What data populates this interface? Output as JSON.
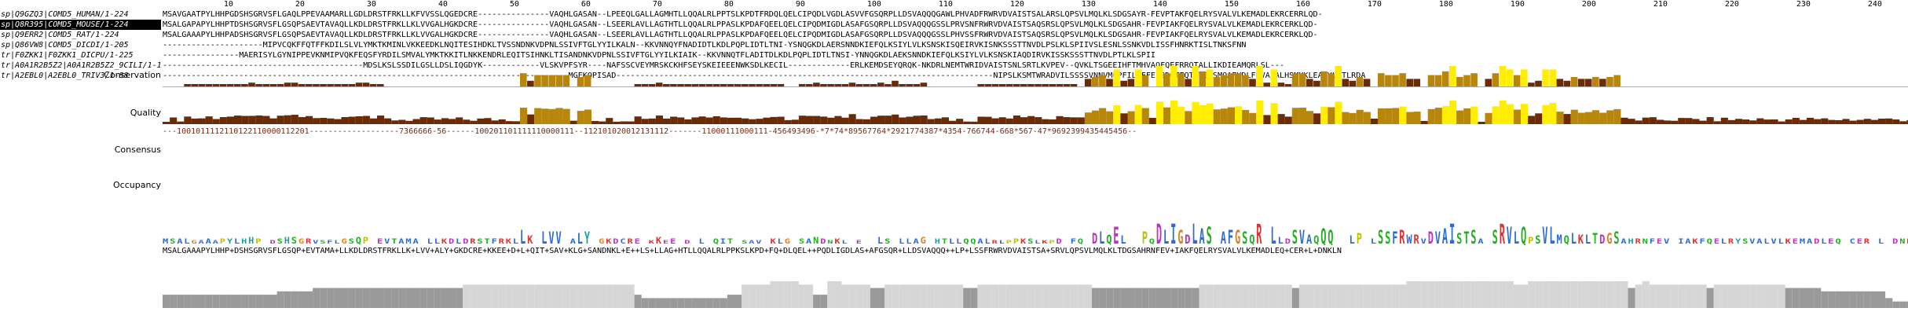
{
  "ruler": {
    "ticks": [
      "10",
      "20",
      "30",
      "40",
      "50",
      "60",
      "70",
      "80",
      "90",
      "100",
      "110",
      "120",
      "130",
      "140",
      "150",
      "160",
      "170",
      "180",
      "190",
      "200",
      "210",
      "220",
      "230",
      "240"
    ]
  },
  "sequences": [
    {
      "name": "sp|Q9GZQ3|COMD5_HUMAN/1-224",
      "selected": false,
      "seq": "MSAVGAATPYLHHPGDSHSGRVSFLGAQLPPEVAAMARLLGDLDRSTFRKLLKFVVSSLQGEDCRE---------------VAQHLGASAN--LPEEQLGALLAGMHTLLQQALRLPPTSLKPDTFRDQLQELCIPQDLVGDLASVVFGSQRPLLDSVAQQQGAWLPHVADFRWRVDVAISTSALARSLQPSVLMQLKLSDGSAYR-FEVPTAKFQELRYSVALVLKEMADLEKRCERRLQD-"
    },
    {
      "name": "sp|Q8R395|COMD5_MOUSE/1-224",
      "selected": true,
      "seq": "MSALGAPAPYLHHPTDSHSGRVSFLGSQPSAEVTAVAQLLKDLDRSTFRKLLKLVVGALHGKDCRE---------------VAQHLGASAN--LSEERLAVLLAGTHTLLQQALRLPPASLKPDAFQEELQELCIPQDMIGDLASAFGSQRPLLDSVAQQQGSSLPRVSNFRWRVDVAISTSAQSRSLQPSVLMQLKLSDGSAHR-FEVPIAKFQELRYSVALVLKEMADLEKRCERKLQD-"
    },
    {
      "name": "sp|Q9ERR2|COMD5_RAT/1-224",
      "selected": false,
      "seq": "MSALGAAAPYLHHPADSHSGRVSFLGSQPSAEVTAVAQLLKDLDRSTFRKLLKLVVGALHGKDCRE---------------VAQHLGASAN--LSEERLAVLLAGTHTLLQQALRLPPASLKPDAFQEELQELCIPQDMIGDLASAFGSQRPLLDSVAQQQGSSLPHVSSFRWRVDVAISTSAQSRSLQPSVLMQLKLSDGSAHR-FEVPIAKFQELRYSVALVLKEMADLEKRCERKLQD-"
    },
    {
      "name": "sp|Q86VW8|COMD5_DICDI/1-205",
      "selected": false,
      "seq": "---------------------MIPVCQKFFQTFFKDILSLVLYMKTKMINLVKKEEDKLNQITESIHDKLTVSSNDNKVDPNLSSIVFTGLYYILKALN--KKVNNQYFNADIDTLKDLPQPLIDTLTNI-YSNQGKDLAERSNNDKIEFQLKSIYLVLKSNSKISQEIRVKISNKSSSTTNVDLPSLKLSPIIVSLESNLSSNKVDLISSFHNRKTISLTNKSFNN"
    },
    {
      "name": "tr|F0ZKK1|F0ZKK1_DICPU/1-225",
      "selected": false,
      "seq": "----------------MAERISYLGYNIPPEVKNMIPVQKFEQSFYRDILSMVALYMKTKKITLNKKENDRLEQITSIHNKLTISANDNKVDPNLSSIVFTGLYYILKIAIK--KKVNNQTFLADITDLKDLPQPLIDTLTNSI-YNNQGKDLAEKSNNDKIEFQLKSIYLVLKSNSKIAQDIRVKISSKSSSTTNVDLPTLKLSPII"
    },
    {
      "name": "tr|A0A1R2B5Z2|A0A1R2B5Z2_9CILI/1-167",
      "selected": false,
      "seq": "------------------------------------------MDSLKSLSSDILGSLLDSLIQGDYK------------VLSKVPFSYR----NAFSSCVEYMRSKCKHFSEYSKEIEEENWKSDLKECIL-------------ERLKEMDSEYQRQK-NKDRLNEMTWRIDVAISTSNLSRTLKVPEV--QVKLTSGEEIHFTMHVAQFQEFRRQTALLIKDIEAMQRLSL---"
    },
    {
      "name": "tr|A2EBL0|A2EBL0_TRIV3/1-88",
      "selected": false,
      "seq": "-------------------------------------------------------------------------------------MGEKQPISAD-------------------------------------------------------------------------------NIPSLKSMTWRADVILSSSSVNNVMQPFILRFFELSDGTFQT-VELSMQAFHDLFRVAEALHSMHKLEANYLFTLRDA"
    }
  ],
  "tracks": {
    "conservation_label": "Conservation",
    "quality_label": "Quality",
    "consensus_label": "Consensus",
    "occupancy_label": "Occupancy"
  },
  "conservation_scores": "---1001011112110122110000112201-------------------7366666-56------100201101111110000111--112101020012131112-------11000111000111-456493496-*7*74*89567764*2921774387*4354-766744-668*567-47*9692399435445456--",
  "consensus_sequence": "MSALGAAAPYLHHP+DSHSGRVSFLGSQP+EVTAMA+LLKDLDRSTFRKLLK+LVV+ALY+GKDCRE+KKEE+D+L+QIT+SAV+KLG+SANDNKL+E++LS+LLAG+HTLLQQALRLPPKSLKPD+FQ+DLQEL++PQDLIGDLAS+AFGSQR+LLDSVAQQQ++LP+LSSFRWRVDVAISTSA+SRVLQPSVLMQLKLTDGSAHRNFEV+IAKFQELRYSVALVLKEMADLEQ+CER+L+DNKLN",
  "colors": {
    "conservation_dark": "#6b2b07",
    "conservation_mid": "#b8860b",
    "conservation_bright": "#ffee00",
    "occupancy_gray": "#9a9a9a",
    "occupancy_light": "#d6d6d6",
    "selection_bg": "#000000"
  }
}
